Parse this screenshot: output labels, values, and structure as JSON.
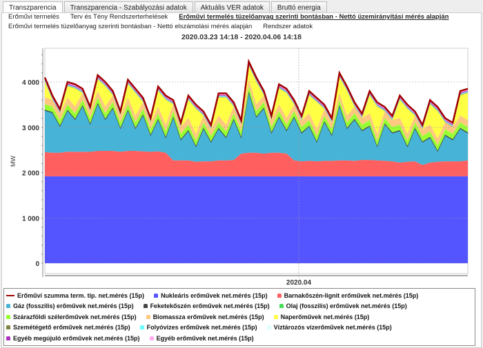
{
  "tabs": [
    "Transzparencia",
    "Transzparencia - Szabályozási adatok",
    "Aktuális VER adatok",
    "Bruttó energia"
  ],
  "subnav": [
    "Erőművi termelés",
    "Terv és Tény Rendszerterhelések",
    "Erőművi termelés tüzelőanyag szerinti bontásban - Nettó üzemirányítási mérés alapján",
    "Erőművi termelés tüzelőanyag szerinti bontásban - Nettó elszámolási mérés alapján",
    "Rendszer adatok"
  ],
  "chart_data": {
    "type": "area",
    "stacked": true,
    "title": "2020.03.23 14:18 - 2020.04.06 14:18",
    "ylabel": "MW",
    "ylim": [
      0,
      4700
    ],
    "yticks": [
      "0",
      "1 000",
      "2 000",
      "3 000",
      "4 000"
    ],
    "ytick_values": [
      0,
      1000,
      2000,
      3000,
      4000
    ],
    "xlabel": "",
    "xticks": [
      {
        "label": "2020.04",
        "value": "2020.04.01 00:00"
      }
    ],
    "x_start": "2020.03.23 14:18",
    "x_end": "2020.04.06 14:18",
    "x_step_hours": 6,
    "grid": true,
    "legend": "bottom",
    "total": {
      "name": "Erőművi szumma term. tip. net.mérés (15p)",
      "color": "#a00000",
      "values": [
        4100,
        3700,
        3400,
        4000,
        3950,
        3850,
        3450,
        4150,
        4000,
        3800,
        3350,
        4050,
        3850,
        3650,
        3200,
        3900,
        3700,
        3600,
        3100,
        3700,
        3500,
        3350,
        3050,
        3750,
        3750,
        3550,
        3150,
        4450,
        4100,
        3800,
        3250,
        3950,
        3850,
        3600,
        3250,
        3800,
        3650,
        3500,
        3200,
        4200,
        3900,
        3550,
        3300,
        3800,
        3550,
        3450,
        3250,
        3700,
        3500,
        3350,
        3050,
        3600,
        3450,
        3200,
        3100,
        3800,
        3850
      ]
    },
    "series": [
      {
        "name": "Nukleáris erőművek net.mérés (15p)",
        "color": "#5555ff",
        "constant": 1920
      },
      {
        "name": "Barnakőszén-lignit erőművek net.mérés (15p)",
        "color": "#ff5f5f",
        "values": [
          530,
          520,
          520,
          540,
          540,
          540,
          540,
          560,
          560,
          560,
          540,
          560,
          560,
          550,
          540,
          550,
          520,
          350,
          350,
          350,
          320,
          330,
          330,
          350,
          350,
          360,
          500,
          520,
          520,
          500,
          520,
          520,
          500,
          350,
          330,
          340,
          330,
          340,
          340,
          350,
          350,
          340,
          360,
          360,
          350,
          340,
          330,
          300,
          320,
          330,
          250,
          300,
          320,
          330,
          330,
          330,
          350
        ]
      },
      {
        "name": "Gáz (fosszilis) erőművek net.mérés (15p)",
        "color": "#47b3d6",
        "values": [
          920,
          880,
          580,
          910,
          710,
          1010,
          610,
          1040,
          690,
          940,
          510,
          890,
          490,
          800,
          360,
          700,
          330,
          950,
          450,
          650,
          330,
          720,
          420,
          700,
          500,
          890,
          350,
          1330,
          780,
          1000,
          430,
          780,
          500,
          950,
          620,
          760,
          420,
          860,
          560,
          1200,
          700,
          910,
          640,
          740,
          300,
          810,
          620,
          700,
          330,
          720,
          500,
          550,
          230,
          570,
          470,
          720,
          600
        ]
      },
      {
        "name": "Feketekőszén erőművek net.mérés (15p)",
        "color": "#444444",
        "constant": 15
      },
      {
        "name": "Olaj (fosszilis) erőművek net.mérés (15p)",
        "color": "#44dd55",
        "constant": 5
      },
      {
        "name": "Szárazföldi szélerőművek net.mérés (15p)",
        "color": "#99ff33",
        "constant": 120
      },
      {
        "name": "Biomassza erőművek net.mérés (15p)",
        "color": "#ffc880",
        "constant": 150
      },
      {
        "name": "Naperőművek net.mérés (15p)",
        "color": "#ffff44",
        "values": [
          350,
          0,
          0,
          250,
          400,
          0,
          0,
          250,
          450,
          0,
          0,
          300,
          500,
          0,
          0,
          350,
          550,
          0,
          0,
          400,
          550,
          0,
          0,
          400,
          600,
          0,
          0,
          300,
          500,
          0,
          0,
          350,
          550,
          0,
          0,
          400,
          600,
          0,
          0,
          350,
          550,
          0,
          0,
          400,
          600,
          0,
          0,
          400,
          550,
          0,
          0,
          450,
          600,
          0,
          0,
          450,
          600
        ]
      },
      {
        "name": "Szemétégető erőművek net.mérés (15p)",
        "color": "#808040",
        "constant": 10
      },
      {
        "name": "Folyóvizes erőművek net.mérés (15p)",
        "color": "#66ffff",
        "constant": 20
      },
      {
        "name": "Víztározós vízerőművek net.mérés (15p)",
        "color": "#ddffff",
        "constant": 0
      },
      {
        "name": "Egyéb megújuló erőművek net.mérés (15p)",
        "color": "#aa33bb",
        "constant": 20
      },
      {
        "name": "Egyéb erőművek net.mérés (15p)",
        "color": "#ffaaee",
        "constant": 40
      }
    ]
  }
}
